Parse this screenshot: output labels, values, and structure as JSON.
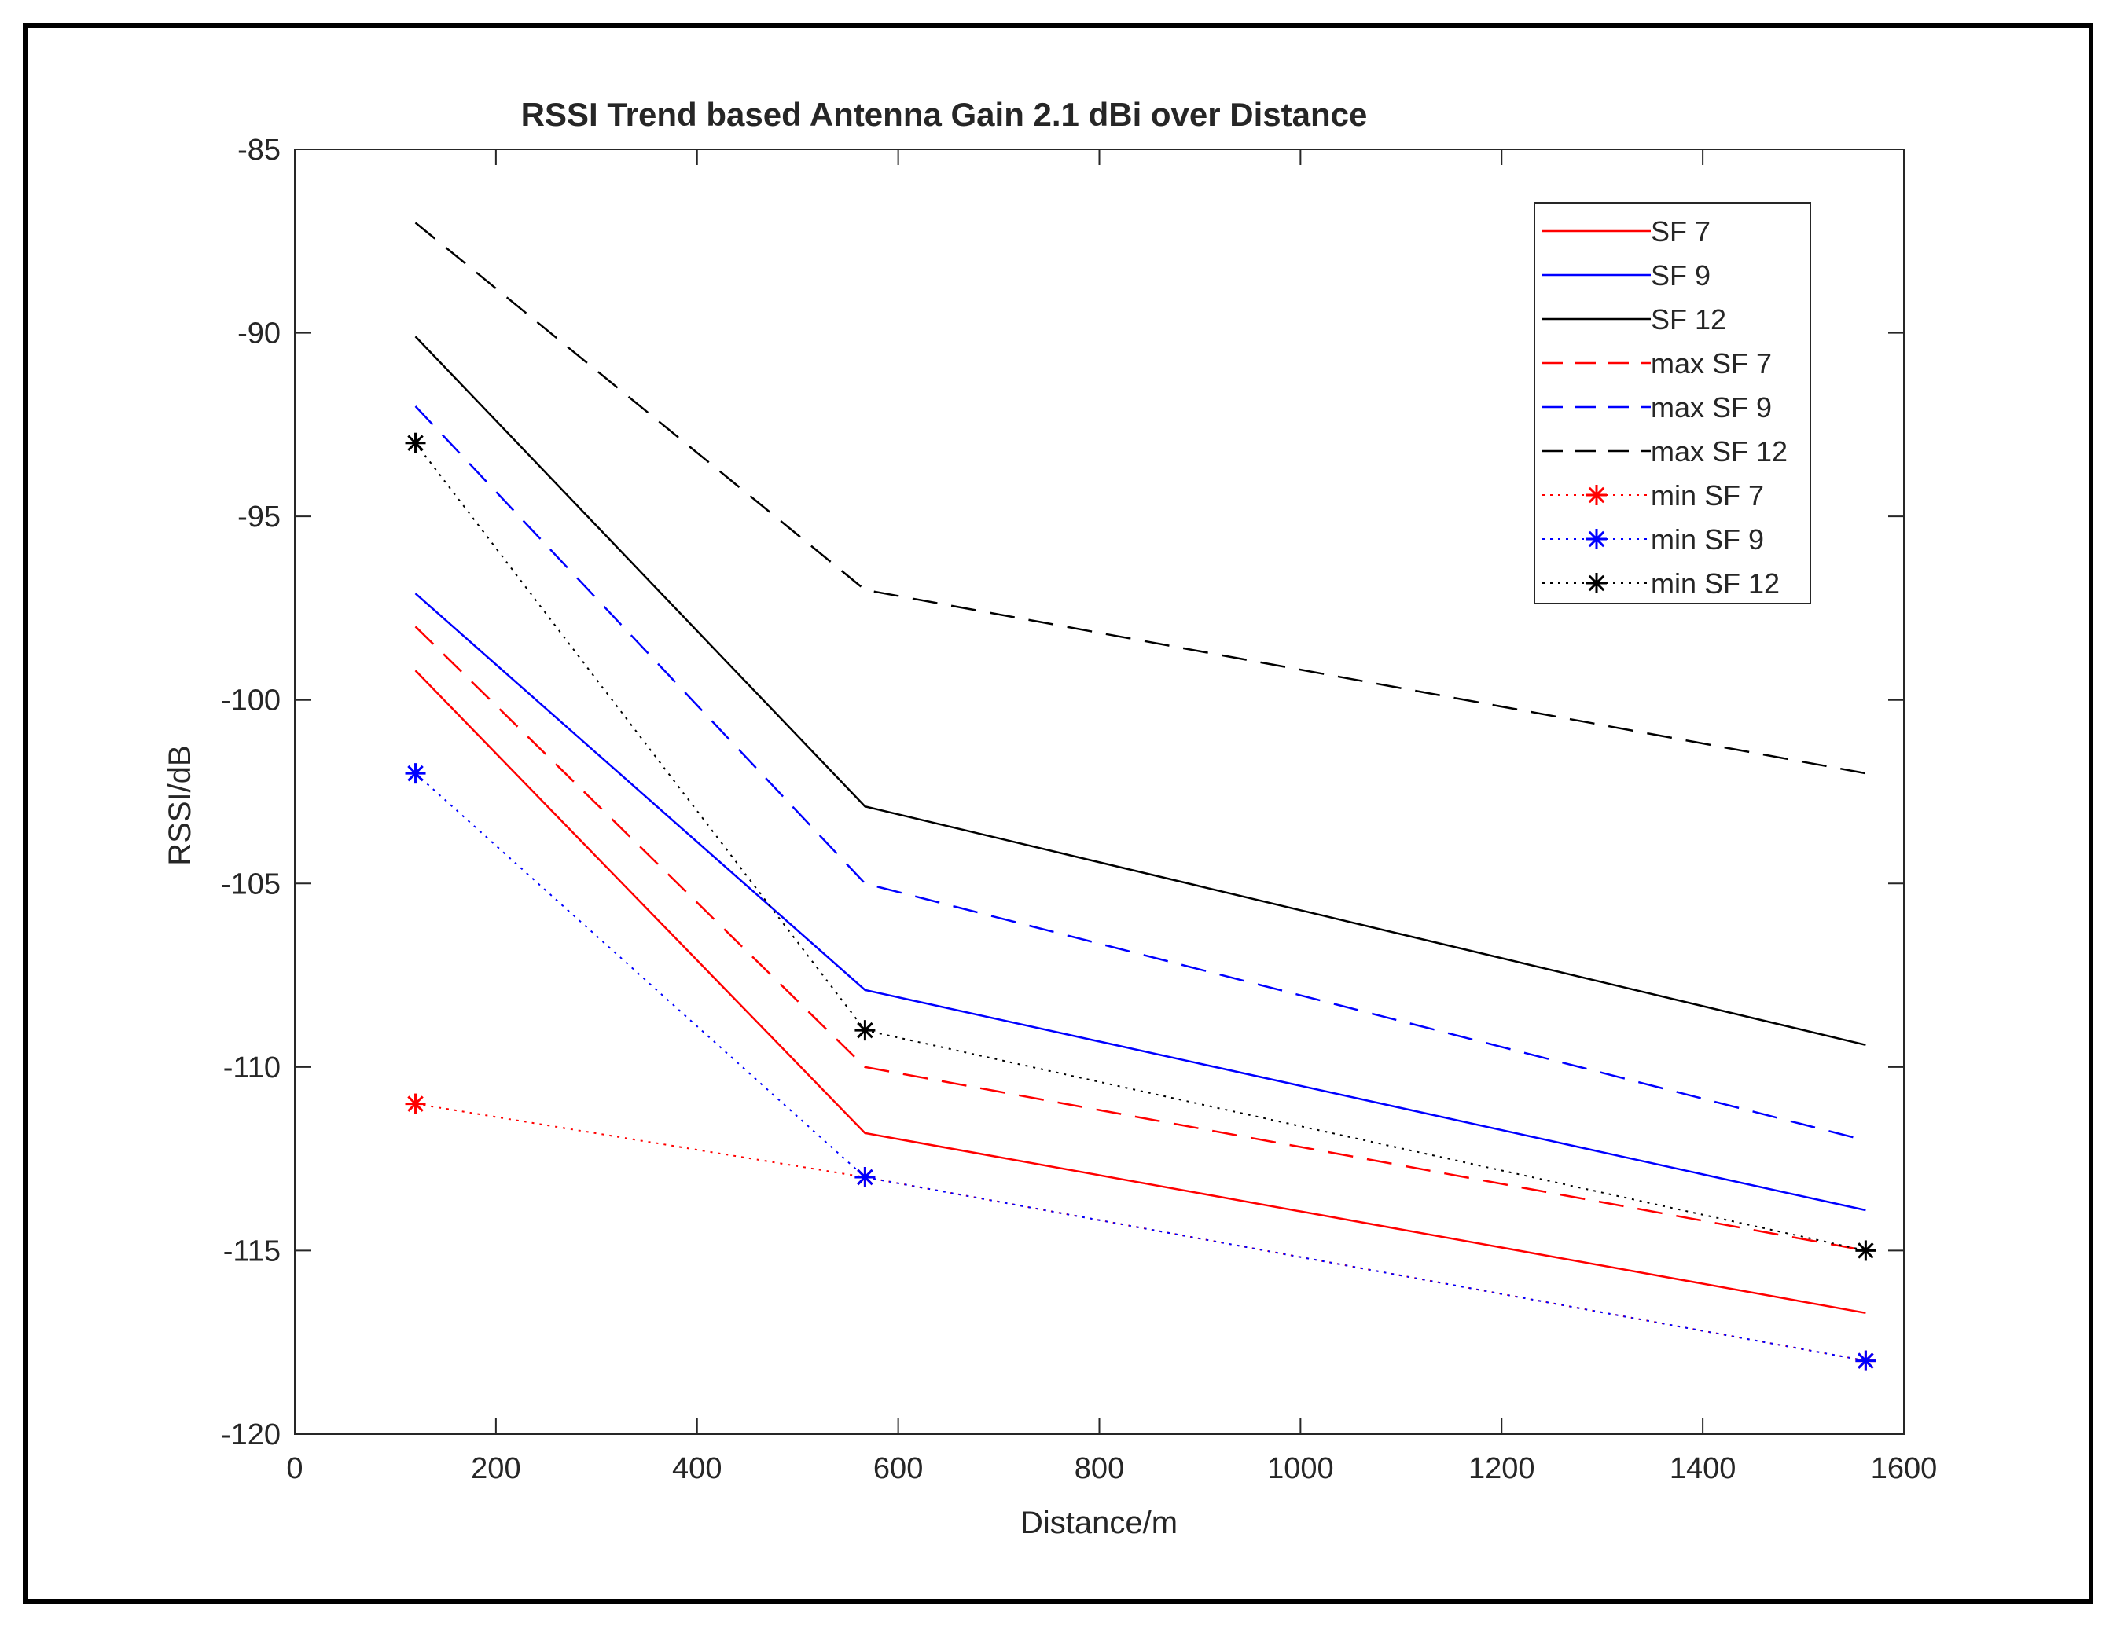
{
  "chart_data": {
    "type": "line",
    "title": "RSSI Trend based Antenna Gain 2.1 dBi over Distance",
    "xlabel": "Distance/m",
    "ylabel": "RSSI/dB",
    "xlim": [
      0,
      1600
    ],
    "ylim": [
      -120,
      -85
    ],
    "xticks": [
      0,
      200,
      400,
      600,
      800,
      1000,
      1200,
      1400,
      1600
    ],
    "xtick_labels": [
      "0",
      "200",
      "400",
      "600",
      "800",
      "1000",
      "1200",
      "1400",
      "1600"
    ],
    "yticks": [
      -85,
      -90,
      -95,
      -100,
      -105,
      -110,
      -115,
      -120
    ],
    "ytick_labels": [
      "-85",
      "-90",
      "-95",
      "-100",
      "-105",
      "-110",
      "-115",
      "-120"
    ],
    "grid": false,
    "legend_position": "top-right",
    "x": [
      120,
      567,
      1562
    ],
    "series": [
      {
        "name": "SF 7",
        "values": [
          -99.2,
          -111.8,
          -116.7
        ],
        "color": "#ff0000",
        "style": "solid",
        "marker": "none"
      },
      {
        "name": "SF 9",
        "values": [
          -97.1,
          -107.9,
          -113.9
        ],
        "color": "#0000ff",
        "style": "solid",
        "marker": "none"
      },
      {
        "name": "SF 12",
        "values": [
          -90.1,
          -102.9,
          -109.4
        ],
        "color": "#000000",
        "style": "solid",
        "marker": "none"
      },
      {
        "name": "max SF 7",
        "values": [
          -98,
          -110,
          -115
        ],
        "color": "#ff0000",
        "style": "dashed",
        "marker": "none"
      },
      {
        "name": "max SF 9",
        "values": [
          -92,
          -105,
          -112
        ],
        "color": "#0000ff",
        "style": "dashed",
        "marker": "none"
      },
      {
        "name": "max SF 12",
        "values": [
          -87,
          -97,
          -102
        ],
        "color": "#000000",
        "style": "dashed",
        "marker": "none"
      },
      {
        "name": "min SF 7",
        "values": [
          -111,
          -113,
          -118
        ],
        "color": "#ff0000",
        "style": "dotted",
        "marker": "asterisk"
      },
      {
        "name": "min SF 9",
        "values": [
          -102,
          -113,
          -118
        ],
        "color": "#0000ff",
        "style": "dotted",
        "marker": "asterisk"
      },
      {
        "name": "min SF 12",
        "values": [
          -93,
          -109,
          -115
        ],
        "color": "#000000",
        "style": "dotted",
        "marker": "asterisk"
      }
    ]
  }
}
